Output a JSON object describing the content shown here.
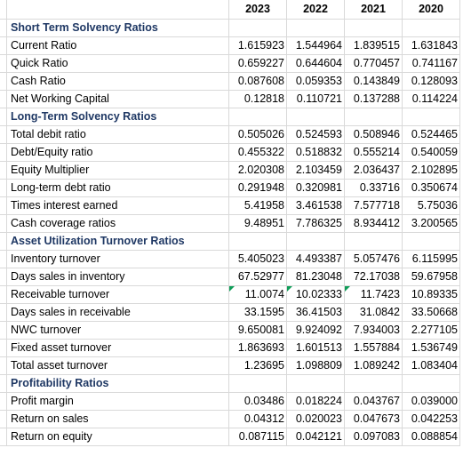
{
  "columns": [
    "2023",
    "2022",
    "2021",
    "2020"
  ],
  "rows": [
    {
      "type": "section",
      "label": "Short Term Solvency Ratios"
    },
    {
      "type": "data",
      "label": "Current Ratio",
      "values": [
        "1.615923",
        "1.544964",
        "1.839515",
        "1.631843"
      ]
    },
    {
      "type": "data",
      "label": "Quick Ratio",
      "values": [
        "0.659227",
        "0.644604",
        "0.770457",
        "0.741167"
      ]
    },
    {
      "type": "data",
      "label": "Cash Ratio",
      "values": [
        "0.087608",
        "0.059353",
        "0.143849",
        "0.128093"
      ]
    },
    {
      "type": "data",
      "label": "Net Working Capital",
      "values": [
        "0.12818",
        "0.110721",
        "0.137288",
        "0.114224"
      ]
    },
    {
      "type": "section",
      "label": "Long-Term Solvency Ratios"
    },
    {
      "type": "data",
      "label": "Total debit ratio",
      "values": [
        "0.505026",
        "0.524593",
        "0.508946",
        "0.524465"
      ]
    },
    {
      "type": "data",
      "label": "Debt/Equity ratio",
      "values": [
        "0.455322",
        "0.518832",
        "0.555214",
        "0.540059"
      ]
    },
    {
      "type": "data",
      "label": "Equity Multiplier",
      "values": [
        "2.020308",
        "2.103459",
        "2.036437",
        "2.102895"
      ]
    },
    {
      "type": "data",
      "label": "Long-term debt ratio",
      "values": [
        "0.291948",
        "0.320981",
        "0.33716",
        "0.350674"
      ]
    },
    {
      "type": "data",
      "label": "Times interest earned",
      "values": [
        "5.41958",
        "3.461538",
        "7.577718",
        "5.75036"
      ]
    },
    {
      "type": "data",
      "label": "Cash coverage ratios",
      "values": [
        "9.48951",
        "7.786325",
        "8.934412",
        "3.200565"
      ]
    },
    {
      "type": "section",
      "label": "Asset Utilization Turnover Ratios"
    },
    {
      "type": "data",
      "label": "Inventory turnover",
      "values": [
        "5.405023",
        "4.493387",
        "5.057476",
        "6.115995"
      ]
    },
    {
      "type": "data",
      "label": "Days sales in inventory",
      "values": [
        "67.52977",
        "81.23048",
        "72.17038",
        "59.67958"
      ]
    },
    {
      "type": "data",
      "label": "Receivable turnover",
      "values": [
        "11.0074",
        "10.02333",
        "11.7423",
        "10.89335"
      ],
      "flags": [
        true,
        true,
        true,
        false
      ]
    },
    {
      "type": "data",
      "label": "Days sales in receivable",
      "values": [
        "33.1595",
        "36.41503",
        "31.0842",
        "33.50668"
      ]
    },
    {
      "type": "data",
      "label": "NWC turnover",
      "values": [
        "9.650081",
        "9.924092",
        "7.934003",
        "2.277105"
      ]
    },
    {
      "type": "data",
      "label": "Fixed asset turnover",
      "values": [
        "1.863693",
        "1.601513",
        "1.557884",
        "1.536749"
      ]
    },
    {
      "type": "data",
      "label": "Total asset turnover",
      "values": [
        "1.23695",
        "1.098809",
        "1.089242",
        "1.083404"
      ]
    },
    {
      "type": "section",
      "label": "Profitability Ratios"
    },
    {
      "type": "data",
      "label": "Profit margin",
      "values": [
        "0.03486",
        "0.018224",
        "0.043767",
        "0.039000"
      ]
    },
    {
      "type": "data",
      "label": "Return on sales",
      "values": [
        "0.04312",
        "0.020023",
        "0.047673",
        "0.042253"
      ]
    },
    {
      "type": "data",
      "label": "Return on equity",
      "values": [
        "0.087115",
        "0.042121",
        "0.097083",
        "0.088854"
      ]
    }
  ],
  "colors": {
    "section_text": "#1f3864",
    "grid_line": "#d9d9d9",
    "error_flag": "#0f9d58"
  }
}
